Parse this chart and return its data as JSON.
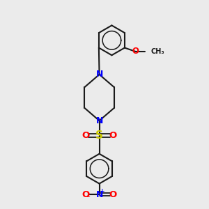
{
  "bg_color": "#ebebeb",
  "bond_color": "#1a1a1a",
  "N_color": "#0000ff",
  "O_color": "#ff0000",
  "S_color": "#cccc00",
  "lw": 1.5,
  "fig_w": 3.0,
  "fig_h": 3.0,
  "dpi": 100,
  "xlim": [
    0,
    10
  ],
  "ylim": [
    0,
    10
  ],
  "benz_r": 0.72,
  "pip_hw": 0.72,
  "pip_hh": 0.62
}
